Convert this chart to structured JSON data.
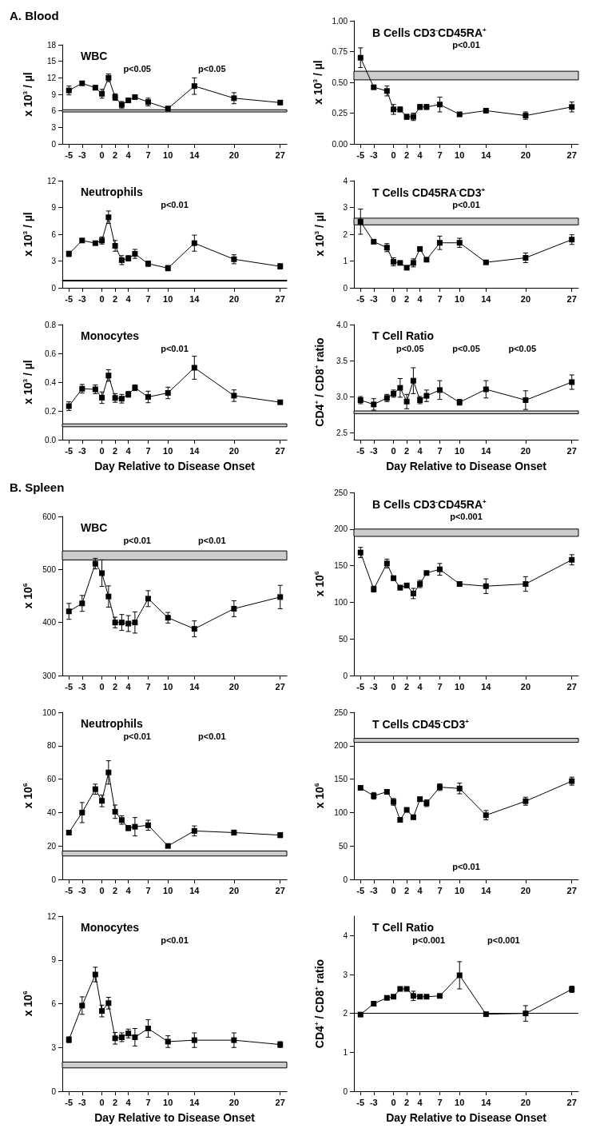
{
  "chart_data": [
    {
      "type": "line",
      "title": "WBC",
      "ylabel": "x 10$^{3}$ / µl",
      "subtitle": "A. Blood",
      "annotations": [
        "p<0.05",
        "p<0.05"
      ],
      "marker": "square",
      "xlim": [
        -6,
        28
      ],
      "xticks": [
        -5,
        -3,
        0,
        2,
        4,
        7,
        10,
        14,
        20,
        27
      ],
      "ylim": [
        0,
        18
      ],
      "yticks": [
        0,
        3,
        6,
        9,
        12,
        15,
        18
      ],
      "x": [
        -5,
        -3,
        -1,
        0,
        1,
        2,
        3,
        4,
        5,
        7,
        10,
        14,
        20,
        27
      ],
      "series": [
        {
          "color": "#000000",
          "values": [
            9.7,
            11.0,
            10.2,
            9.1,
            12.0,
            8.5,
            7.1,
            7.9,
            8.5,
            7.6,
            6.4,
            10.5,
            8.3,
            7.5
          ],
          "errors": [
            0.8,
            0.3,
            0.4,
            0.8,
            0.7,
            0.6,
            0.6,
            0.4,
            0.4,
            0.7,
            0.4,
            1.5,
            1.0,
            0.2
          ]
        }
      ],
      "bands": [
        {
          "axis": "y",
          "from": 5.8,
          "to": 6.2,
          "color": "#cccccc"
        }
      ]
    },
    {
      "type": "line",
      "title": "B Cells CD3$^{-}$CD45RA$^{+}$",
      "ylabel": "x 10$^{3}$ / µl",
      "annotations": [
        "p<0.01"
      ],
      "marker": "square",
      "xlim": [
        -6,
        28
      ],
      "xticks": [
        -5,
        -3,
        0,
        2,
        4,
        7,
        10,
        14,
        20,
        27
      ],
      "ylim": [
        0,
        1
      ],
      "yticks": [
        {
          "value": 0,
          "label": "0.00"
        },
        0.25,
        {
          "value": 0.5,
          "label": "0.50"
        },
        0.75,
        {
          "value": 1,
          "label": "1.00"
        }
      ],
      "x": [
        -5,
        -3,
        -1,
        0,
        1,
        2,
        3,
        4,
        5,
        7,
        10,
        14,
        20,
        27
      ],
      "series": [
        {
          "color": "#000000",
          "values": [
            0.7,
            0.46,
            0.43,
            0.28,
            0.28,
            0.22,
            0.22,
            0.3,
            0.3,
            0.32,
            0.24,
            0.27,
            0.23,
            0.3
          ],
          "errors": [
            0.08,
            0.01,
            0.04,
            0.04,
            0.02,
            0.02,
            0.03,
            0.02,
            0.02,
            0.06,
            0.01,
            0.015,
            0.03,
            0.04
          ]
        }
      ],
      "bands": [
        {
          "axis": "y",
          "from": 0.52,
          "to": 0.59,
          "color": "#cccccc"
        }
      ]
    },
    {
      "type": "line",
      "title": "Neutrophils",
      "ylabel": "x 10$^{3}$ / µl",
      "annotations": [
        "p<0.01"
      ],
      "marker": "square",
      "xlim": [
        -6,
        28
      ],
      "xticks": [
        -5,
        -3,
        0,
        2,
        4,
        7,
        10,
        14,
        20,
        27
      ],
      "ylim": [
        0,
        12
      ],
      "yticks": [
        0,
        3,
        6,
        9,
        12
      ],
      "x": [
        -5,
        -3,
        -1,
        0,
        1,
        2,
        3,
        4,
        5,
        7,
        10,
        14,
        20,
        27
      ],
      "series": [
        {
          "color": "#000000",
          "values": [
            3.8,
            5.3,
            5.0,
            5.3,
            7.9,
            4.7,
            3.1,
            3.3,
            3.8,
            2.7,
            2.2,
            5.0,
            3.2,
            2.4
          ],
          "errors": [
            0.3,
            0.2,
            0.2,
            0.4,
            0.7,
            0.6,
            0.5,
            0.3,
            0.5,
            0.3,
            0.3,
            0.9,
            0.5,
            0.3
          ]
        }
      ],
      "bands": [
        {
          "axis": "y",
          "from": 0.75,
          "to": 0.85,
          "color": "#cccccc"
        }
      ]
    },
    {
      "type": "line",
      "title": "T Cells CD45RA$^{-}$CD3$^{+}$",
      "ylabel": "x 10$^{3}$ / µl",
      "annotations": [
        "p<0.01"
      ],
      "marker": "square",
      "xlim": [
        -6,
        28
      ],
      "xticks": [
        -5,
        -3,
        0,
        2,
        4,
        7,
        10,
        14,
        20,
        27
      ],
      "ylim": [
        0,
        4
      ],
      "yticks": [
        0,
        1,
        2,
        3,
        4
      ],
      "x": [
        -5,
        -3,
        -1,
        0,
        1,
        2,
        3,
        4,
        5,
        7,
        10,
        14,
        20,
        27
      ],
      "series": [
        {
          "color": "#000000",
          "values": [
            2.47,
            1.72,
            1.5,
            0.97,
            0.93,
            0.75,
            0.93,
            1.45,
            1.05,
            1.68,
            1.68,
            0.95,
            1.12,
            1.8
          ],
          "errors": [
            0.47,
            0.03,
            0.15,
            0.15,
            0.05,
            0.05,
            0.15,
            0.03,
            0.05,
            0.25,
            0.17,
            0.03,
            0.18,
            0.18
          ]
        }
      ],
      "bands": [
        {
          "axis": "y",
          "from": 2.35,
          "to": 2.6,
          "color": "#cccccc"
        }
      ]
    },
    {
      "type": "line",
      "title": "Monocytes",
      "ylabel": "x 10$^{3}$ / µl",
      "xlabel": "Day Relative to Disease Onset",
      "annotations": [
        "p<0.01"
      ],
      "marker": "square",
      "xlim": [
        -6,
        28
      ],
      "xticks": [
        -5,
        -3,
        0,
        2,
        4,
        7,
        10,
        14,
        20,
        27
      ],
      "ylim": [
        0,
        0.8
      ],
      "yticks": [
        {
          "value": 0,
          "label": "0.0"
        },
        0.2,
        0.4,
        0.6,
        0.8
      ],
      "x": [
        -5,
        -3,
        -1,
        0,
        1,
        2,
        3,
        4,
        5,
        7,
        10,
        14,
        20,
        27
      ],
      "series": [
        {
          "color": "#000000",
          "values": [
            0.233,
            0.354,
            0.35,
            0.292,
            0.446,
            0.29,
            0.285,
            0.315,
            0.361,
            0.297,
            0.325,
            0.5,
            0.306,
            0.26
          ],
          "errors": [
            0.03,
            0.03,
            0.03,
            0.04,
            0.04,
            0.03,
            0.03,
            0.02,
            0.02,
            0.04,
            0.04,
            0.08,
            0.04,
            0.005
          ]
        }
      ],
      "bands": [
        {
          "axis": "y",
          "from": 0.09,
          "to": 0.11,
          "color": "#cccccc"
        }
      ]
    },
    {
      "type": "line",
      "title": "T Cell Ratio",
      "ylabel": "CD4$^{+}$ / CD8$^{+}$ ratio",
      "xlabel": "Day Relative to Disease Onset",
      "annotations": [
        "p<0.05",
        "p<0.05",
        "p<0.05"
      ],
      "marker": "square",
      "xlim": [
        -6,
        28
      ],
      "xticks": [
        -5,
        -3,
        0,
        2,
        4,
        7,
        10,
        14,
        20,
        27
      ],
      "ylim": [
        2.4,
        4
      ],
      "yticks": [
        2.5,
        {
          "value": 3,
          "label": "3.0"
        },
        3.5,
        {
          "value": 4,
          "label": "4.0"
        }
      ],
      "x": [
        -5,
        -3,
        -1,
        0,
        1,
        2,
        3,
        4,
        5,
        7,
        10,
        14,
        20,
        27
      ],
      "series": [
        {
          "color": "#000000",
          "values": [
            2.95,
            2.89,
            2.98,
            3.04,
            3.12,
            2.93,
            3.22,
            2.95,
            3.01,
            3.09,
            2.92,
            3.1,
            2.95,
            3.2
          ],
          "errors": [
            0.05,
            0.08,
            0.05,
            0.05,
            0.13,
            0.1,
            0.18,
            0.05,
            0.08,
            0.13,
            0.04,
            0.12,
            0.13,
            0.1
          ]
        }
      ],
      "bands": [
        {
          "axis": "y",
          "from": 2.76,
          "to": 2.8,
          "color": "#cccccc"
        }
      ]
    },
    {
      "type": "line",
      "title": "WBC",
      "ylabel": "x 10$^{6}$",
      "subtitle": "B. Spleen",
      "annotations": [
        "p<0.01",
        "p<0.01"
      ],
      "marker": "square",
      "xlim": [
        -6,
        28
      ],
      "xticks": [
        -5,
        -3,
        0,
        2,
        4,
        7,
        10,
        14,
        20,
        27
      ],
      "ylim": [
        300,
        600
      ],
      "yticks": [
        300,
        400,
        500,
        600
      ],
      "x": [
        -5,
        -3,
        -1,
        0,
        1,
        2,
        3,
        4,
        5,
        7,
        10,
        14,
        20,
        27
      ],
      "series": [
        {
          "color": "#000000",
          "values": [
            421,
            436,
            511,
            493,
            449,
            400,
            400,
            398,
            400,
            445,
            409,
            388,
            426,
            448
          ],
          "errors": [
            15,
            15,
            10,
            25,
            20,
            10,
            15,
            15,
            20,
            15,
            10,
            15,
            15,
            22
          ]
        }
      ],
      "bands": [
        {
          "axis": "y",
          "from": 518,
          "to": 535,
          "color": "#cccccc"
        }
      ]
    },
    {
      "type": "line",
      "title": "B Cells CD3$^{-}$CD45RA$^{+}$",
      "ylabel": "x 10$^{6}$",
      "annotations": [
        "p<0.001"
      ],
      "marker": "square",
      "xlim": [
        -6,
        28
      ],
      "xticks": [
        -5,
        -3,
        0,
        2,
        4,
        7,
        10,
        14,
        20,
        27
      ],
      "ylim": [
        0,
        250
      ],
      "yticks": [
        0,
        50,
        100,
        150,
        200,
        250
      ],
      "x": [
        -5,
        -3,
        -1,
        0,
        1,
        2,
        3,
        4,
        5,
        7,
        10,
        14,
        20,
        27
      ],
      "series": [
        {
          "color": "#000000",
          "values": [
            168,
            118,
            153,
            133,
            120,
            123,
            112,
            125,
            140,
            145,
            125,
            122,
            125,
            158
          ],
          "errors": [
            7,
            4,
            6,
            3,
            3,
            3,
            7,
            5,
            2,
            8,
            3,
            10,
            10,
            7
          ]
        }
      ],
      "bands": [
        {
          "axis": "y",
          "from": 190,
          "to": 200,
          "color": "#cccccc"
        }
      ]
    },
    {
      "type": "line",
      "title": "Neutrophils",
      "ylabel": "x 10$^{6}$",
      "annotations": [
        "p<0.01",
        "p<0.01"
      ],
      "marker": "square",
      "xlim": [
        -6,
        28
      ],
      "xticks": [
        -5,
        -3,
        0,
        2,
        4,
        7,
        10,
        14,
        20,
        27
      ],
      "ylim": [
        0,
        100
      ],
      "yticks": [
        0,
        20,
        40,
        60,
        80,
        100
      ],
      "x": [
        -5,
        -3,
        -1,
        0,
        1,
        2,
        3,
        4,
        5,
        7,
        10,
        14,
        20,
        27
      ],
      "series": [
        {
          "color": "#000000",
          "values": [
            28,
            40,
            54,
            47,
            64,
            40.5,
            35.5,
            30.7,
            31.5,
            32.4,
            20,
            29,
            28,
            26.5
          ],
          "errors": [
            1,
            6,
            3,
            3.5,
            7,
            4,
            2.5,
            1.5,
            5.5,
            3,
            1,
            3,
            1.5,
            1.5
          ]
        }
      ],
      "bands": [
        {
          "axis": "y",
          "from": 14,
          "to": 17,
          "color": "#cccccc"
        }
      ]
    },
    {
      "type": "line",
      "title": "T Cells CD45$^{-}$CD3$^{+}$",
      "ylabel": "x 10$^{6}$",
      "annotations": [
        "p<0.01"
      ],
      "marker": "square",
      "xlim": [
        -6,
        28
      ],
      "xticks": [
        -5,
        -3,
        0,
        2,
        4,
        7,
        10,
        14,
        20,
        27
      ],
      "ylim": [
        0,
        250
      ],
      "yticks": [
        0,
        50,
        100,
        150,
        200,
        250
      ],
      "x": [
        -5,
        -3,
        -1,
        0,
        1,
        2,
        3,
        4,
        5,
        7,
        10,
        14,
        20,
        27
      ],
      "series": [
        {
          "color": "#000000",
          "values": [
            137,
            125,
            131,
            116,
            89,
            104,
            93,
            120,
            114,
            138,
            136,
            96,
            117,
            147
          ],
          "errors": [
            3,
            5,
            3,
            5,
            3,
            3,
            3,
            3,
            5,
            5,
            8,
            7,
            6,
            6
          ]
        }
      ],
      "bands": [
        {
          "axis": "y",
          "from": 205,
          "to": 211,
          "color": "#cccccc"
        }
      ]
    },
    {
      "type": "line",
      "title": "Monocytes",
      "ylabel": "x 10$^{6}$",
      "xlabel": "Day Relative to Disease Onset",
      "annotations": [
        "p<0.01"
      ],
      "marker": "square",
      "xlim": [
        -6,
        28
      ],
      "xticks": [
        -5,
        -3,
        0,
        2,
        4,
        7,
        10,
        14,
        20,
        27
      ],
      "ylim": [
        0,
        12
      ],
      "yticks": [
        0,
        3,
        6,
        9,
        12
      ],
      "x": [
        -5,
        -3,
        -1,
        0,
        1,
        2,
        3,
        4,
        5,
        7,
        10,
        14,
        20,
        27
      ],
      "series": [
        {
          "color": "#000000",
          "values": [
            3.53,
            5.87,
            8.0,
            5.5,
            6.04,
            3.63,
            3.7,
            3.96,
            3.7,
            4.3,
            3.4,
            3.5,
            3.5,
            3.2
          ],
          "errors": [
            0.2,
            0.6,
            0.5,
            0.4,
            0.4,
            0.4,
            0.3,
            0.3,
            0.6,
            0.6,
            0.4,
            0.5,
            0.5,
            0.2
          ]
        }
      ],
      "bands": [
        {
          "axis": "y",
          "from": 1.6,
          "to": 2.0,
          "color": "#cccccc"
        }
      ]
    },
    {
      "type": "line",
      "title": "T Cell Ratio",
      "ylabel": "CD4$^{+}$ / CD8$^{+}$ ratio",
      "xlabel": "Day Relative to Disease Onset",
      "annotations": [
        "p<0.001",
        "p<0.001"
      ],
      "marker": "square",
      "xlim": [
        -6,
        28
      ],
      "xticks": [
        -5,
        -3,
        0,
        2,
        4,
        7,
        10,
        14,
        20,
        27
      ],
      "ylim": [
        0,
        4.5
      ],
      "yticks": [
        0,
        1,
        2,
        3,
        4
      ],
      "x": [
        -5,
        -3,
        -1,
        0,
        1,
        2,
        3,
        4,
        5,
        7,
        10,
        14,
        20,
        27
      ],
      "series": [
        {
          "color": "#000000",
          "values": [
            1.97,
            2.25,
            2.4,
            2.43,
            2.63,
            2.63,
            2.45,
            2.43,
            2.43,
            2.45,
            2.98,
            1.98,
            2.0,
            2.62
          ],
          "errors": [
            0.03,
            0.03,
            0.03,
            0.03,
            0.03,
            0.03,
            0.12,
            0.03,
            0.03,
            0.03,
            0.35,
            0.05,
            0.2,
            0.08
          ]
        }
      ],
      "ref_lines": [
        {
          "axis": "y",
          "value": 2.0,
          "color": "#000000"
        }
      ]
    }
  ]
}
